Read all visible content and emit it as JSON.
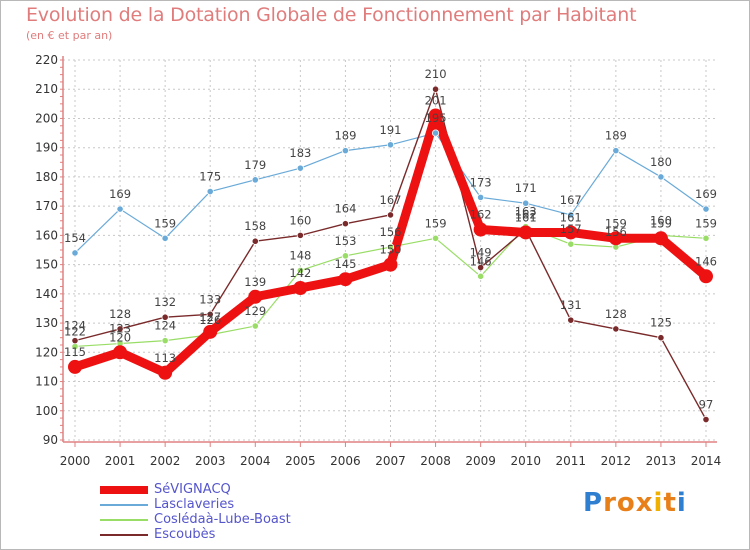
{
  "chart_data": {
    "type": "line",
    "title": "Evolution de la Dotation Globale de Fonctionnement par Habitant",
    "subtitle": "(en € et par an)",
    "x": [
      "2000",
      "2001",
      "2002",
      "2003",
      "2004",
      "2005",
      "2006",
      "2007",
      "2008",
      "2009",
      "2010",
      "2011",
      "2012",
      "2013",
      "2014"
    ],
    "ylim": [
      90,
      220
    ],
    "yticks": [
      90,
      100,
      110,
      120,
      130,
      140,
      150,
      160,
      170,
      180,
      190,
      200,
      210,
      220
    ],
    "grid": true,
    "legend_position": "bottom-left",
    "series": [
      {
        "name": "SéVIGNACQ",
        "color": "#ee1111",
        "values": [
          115,
          120,
          113,
          127,
          139,
          142,
          145,
          150,
          201,
          162,
          161,
          161,
          159,
          159,
          146
        ]
      },
      {
        "name": "Lasclaveries",
        "color": "#6aaad8",
        "values": [
          154,
          169,
          159,
          175,
          179,
          183,
          189,
          191,
          195,
          173,
          171,
          167,
          189,
          180,
          169
        ]
      },
      {
        "name": "Coslédaà-Lube-Boast",
        "color": "#99dd66",
        "values": [
          122,
          123,
          124,
          126,
          129,
          148,
          153,
          156,
          159,
          146,
          163,
          157,
          156,
          160,
          159
        ]
      },
      {
        "name": "Escoubès",
        "color": "#7a2a2a",
        "values": [
          124,
          128,
          132,
          133,
          158,
          160,
          164,
          167,
          210,
          149,
          162,
          131,
          128,
          125,
          97
        ]
      }
    ]
  },
  "logo": {
    "letters": [
      "P",
      "r",
      "o",
      "x",
      "i",
      "t",
      "i"
    ],
    "colors": [
      "#2f7fd0",
      "#e8801a",
      "#e8801a",
      "#e8801a",
      "#f0b000",
      "#e8801a",
      "#2f7fd0"
    ]
  }
}
